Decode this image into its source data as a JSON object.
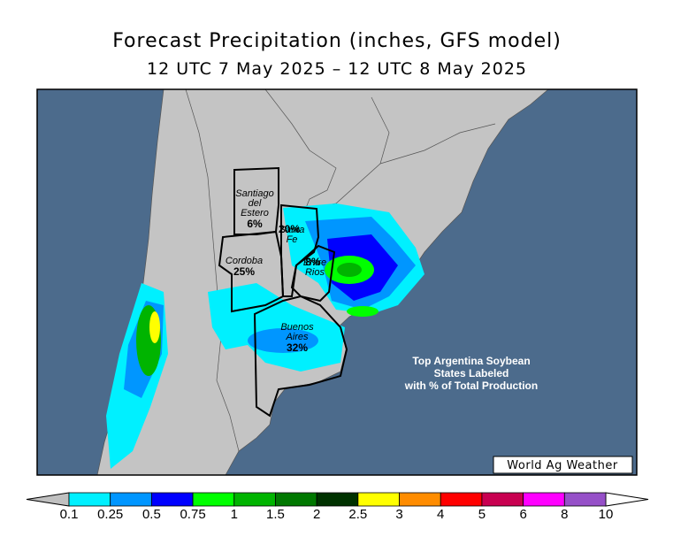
{
  "header": {
    "title": "Forecast Precipitation (inches, GFS model)",
    "subtitle": "12 UTC 7 May 2025 – 12 UTC 8 May 2025"
  },
  "map": {
    "regions": [
      {
        "name_lines": [
          "Santiago",
          "del",
          "Estero"
        ],
        "share": "6%"
      },
      {
        "name_lines": [
          "Cordoba"
        ],
        "share": "25%"
      },
      {
        "name_lines": [
          "Santa",
          "Fe"
        ],
        "share": "20%"
      },
      {
        "name_lines": [
          "Entre",
          "Rios"
        ],
        "share": "8%"
      },
      {
        "name_lines": [
          "Buenos",
          "Aires"
        ],
        "share": "32%"
      }
    ],
    "note_lines": [
      "Top Argentina Soybean",
      "States Labeled",
      "with % of Total Production"
    ],
    "credit": "World Ag Weather"
  },
  "legend": {
    "below_color": "#c0c0c0",
    "above_color": "#ffffff",
    "colors": [
      "#00f0ff",
      "#0096ff",
      "#0000ff",
      "#00ff00",
      "#00b400",
      "#007800",
      "#003200",
      "#ffff00",
      "#ff8c00",
      "#ff0000",
      "#c80050",
      "#ff00ff",
      "#9650c8"
    ],
    "labels": [
      "0.1",
      "0.25",
      "0.5",
      "0.75",
      "1",
      "1.5",
      "2",
      "2.5",
      "3",
      "4",
      "5",
      "6",
      "8",
      "10"
    ]
  }
}
